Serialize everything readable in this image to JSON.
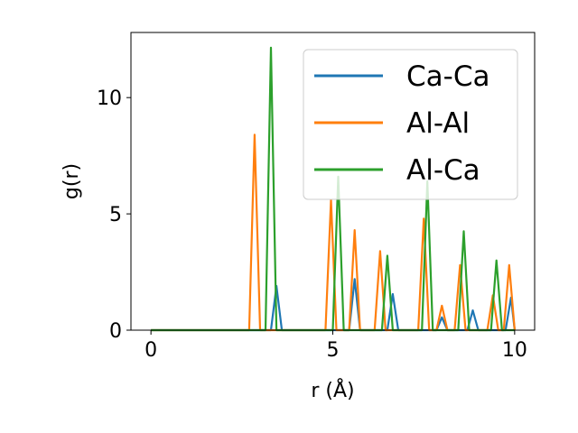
{
  "chart_data": {
    "type": "line",
    "title": "",
    "xlabel": "r (Å)",
    "ylabel": "g(r)",
    "xlim": [
      -0.55,
      10.55
    ],
    "ylim": [
      0,
      12.8
    ],
    "xticks": [
      0,
      5,
      10
    ],
    "yticks": [
      0,
      5,
      10
    ],
    "grid": false,
    "legend_position": "upper right",
    "series": [
      {
        "name": "Ca-Ca",
        "color": "#1f77b4",
        "points": [
          [
            0,
            0
          ],
          [
            3.3,
            0
          ],
          [
            3.45,
            1.9
          ],
          [
            3.6,
            0
          ],
          [
            5.45,
            0
          ],
          [
            5.6,
            2.2
          ],
          [
            5.75,
            0
          ],
          [
            6.5,
            0
          ],
          [
            6.65,
            1.55
          ],
          [
            6.8,
            0
          ],
          [
            7.85,
            0
          ],
          [
            8.0,
            0.55
          ],
          [
            8.15,
            0
          ],
          [
            8.7,
            0
          ],
          [
            8.85,
            0.85
          ],
          [
            9.0,
            0
          ],
          [
            9.75,
            0
          ],
          [
            9.9,
            1.4
          ],
          [
            10.0,
            0
          ]
        ]
      },
      {
        "name": "Al-Al",
        "color": "#ff7f0e",
        "points": [
          [
            0,
            0
          ],
          [
            2.7,
            0
          ],
          [
            2.85,
            8.4
          ],
          [
            3.0,
            0
          ],
          [
            4.8,
            0
          ],
          [
            4.95,
            5.6
          ],
          [
            5.1,
            0
          ],
          [
            5.45,
            0
          ],
          [
            5.6,
            4.3
          ],
          [
            5.75,
            0
          ],
          [
            6.15,
            0
          ],
          [
            6.3,
            3.4
          ],
          [
            6.45,
            0
          ],
          [
            7.35,
            0
          ],
          [
            7.5,
            4.8
          ],
          [
            7.65,
            0
          ],
          [
            7.85,
            0
          ],
          [
            8.0,
            1.05
          ],
          [
            8.15,
            0
          ],
          [
            8.35,
            0
          ],
          [
            8.5,
            2.8
          ],
          [
            8.65,
            0
          ],
          [
            9.25,
            0
          ],
          [
            9.4,
            1.5
          ],
          [
            9.55,
            0
          ],
          [
            9.7,
            0
          ],
          [
            9.85,
            2.8
          ],
          [
            10.0,
            0
          ]
        ]
      },
      {
        "name": "Al-Ca",
        "color": "#2ca02c",
        "points": [
          [
            0,
            0
          ],
          [
            3.15,
            0
          ],
          [
            3.3,
            12.15
          ],
          [
            3.45,
            0
          ],
          [
            5.0,
            0
          ],
          [
            5.15,
            6.6
          ],
          [
            5.3,
            0
          ],
          [
            6.35,
            0
          ],
          [
            6.5,
            3.2
          ],
          [
            6.65,
            0
          ],
          [
            7.45,
            0
          ],
          [
            7.6,
            6.4
          ],
          [
            7.75,
            0
          ],
          [
            8.45,
            0
          ],
          [
            8.6,
            4.25
          ],
          [
            8.75,
            0
          ],
          [
            9.35,
            0
          ],
          [
            9.5,
            3.0
          ],
          [
            9.65,
            0
          ],
          [
            10.0,
            0
          ]
        ]
      }
    ]
  }
}
